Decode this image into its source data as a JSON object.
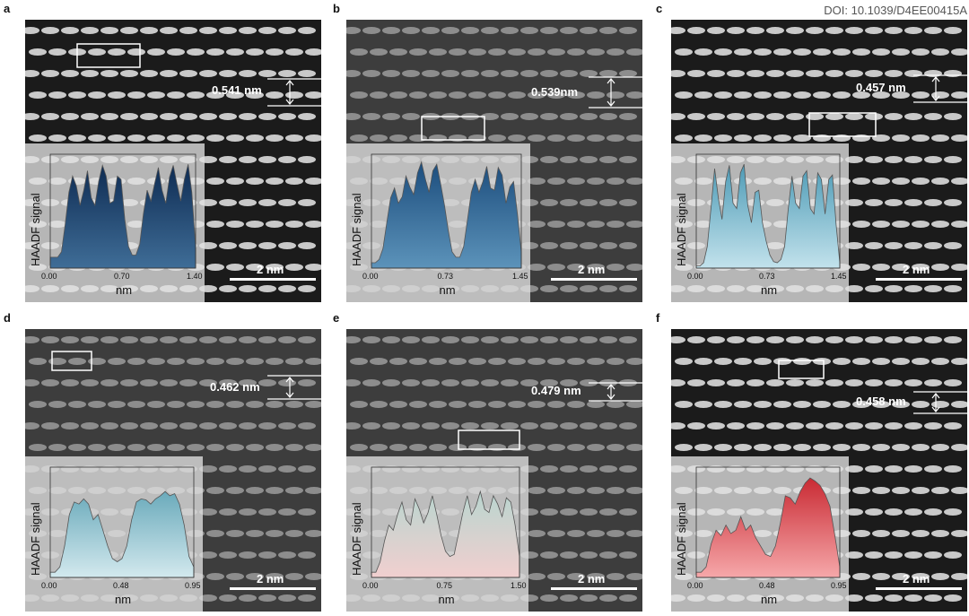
{
  "doi": "DOI: 10.1039/D4EE00415A",
  "panels": [
    {
      "label": "a",
      "spacing": "0.541 nm",
      "scale": "2 nm",
      "inset_ylabel": "HAADF signal",
      "inset_xlabel": "nm",
      "ticks": [
        "0.00",
        "0.70",
        "1.40"
      ],
      "fill_top": "#0e2b52",
      "fill_bottom": "#3f6d97",
      "dark": true
    },
    {
      "label": "b",
      "spacing": "0.539nm",
      "scale": "2 nm",
      "inset_ylabel": "HAADF signal",
      "inset_xlabel": "nm",
      "ticks": [
        "0.00",
        "0.73",
        "1.45"
      ],
      "fill_top": "#1c4d7d",
      "fill_bottom": "#5c93ba",
      "dark": false
    },
    {
      "label": "c",
      "spacing": "0.457 nm",
      "scale": "2 nm",
      "inset_ylabel": "HAADF signal",
      "inset_xlabel": "nm",
      "ticks": [
        "0.00",
        "0.73",
        "1.45"
      ],
      "fill_top": "#4e9bb6",
      "fill_bottom": "#c2e2ec",
      "dark": true
    },
    {
      "label": "d",
      "spacing": "0.462 nm",
      "scale": "2 nm",
      "inset_ylabel": "HAADF signal",
      "inset_xlabel": "nm",
      "ticks": [
        "0.00",
        "0.48",
        "0.95"
      ],
      "fill_top": "#6aaabb",
      "fill_bottom": "#d3e9ee",
      "dark": false
    },
    {
      "label": "e",
      "spacing": "0.479 nm",
      "scale": "2 nm",
      "inset_ylabel": "HAADF signal",
      "inset_xlabel": "nm",
      "ticks": [
        "0.00",
        "0.75",
        "1.50"
      ],
      "fill_top": "#b9d5cf",
      "fill_bottom": "#f1cfcf",
      "dark": false
    },
    {
      "label": "f",
      "spacing": "0.458 nm",
      "scale": "2 nm",
      "inset_ylabel": "HAADF signal",
      "inset_xlabel": "nm",
      "ticks": [
        "0.00",
        "0.48",
        "0.95"
      ],
      "fill_top": "#c92a33",
      "fill_bottom": "#f6a8aa",
      "dark": true
    }
  ],
  "profiles": [
    [
      0.1,
      0.1,
      0.1,
      0.15,
      0.4,
      0.7,
      0.85,
      0.76,
      0.58,
      0.72,
      0.9,
      0.65,
      0.58,
      0.8,
      0.95,
      0.85,
      0.6,
      0.62,
      0.85,
      0.82,
      0.45,
      0.2,
      0.12,
      0.12,
      0.22,
      0.5,
      0.72,
      0.62,
      0.78,
      0.93,
      0.72,
      0.6,
      0.84,
      0.95,
      0.78,
      0.62,
      0.82,
      0.96,
      0.7,
      0.2
    ],
    [
      0.05,
      0.05,
      0.08,
      0.18,
      0.42,
      0.65,
      0.74,
      0.6,
      0.66,
      0.85,
      0.75,
      0.68,
      0.88,
      0.98,
      0.83,
      0.7,
      0.9,
      0.96,
      0.78,
      0.58,
      0.35,
      0.15,
      0.1,
      0.1,
      0.2,
      0.45,
      0.7,
      0.82,
      0.7,
      0.8,
      0.94,
      0.74,
      0.72,
      0.93,
      0.86,
      0.6,
      0.75,
      0.8,
      0.5,
      0.15
    ],
    [
      0.02,
      0.02,
      0.05,
      0.2,
      0.55,
      0.92,
      0.65,
      0.45,
      0.8,
      0.95,
      0.6,
      0.55,
      0.88,
      0.96,
      0.58,
      0.42,
      0.7,
      0.72,
      0.42,
      0.25,
      0.12,
      0.06,
      0.05,
      0.08,
      0.2,
      0.55,
      0.85,
      0.6,
      0.55,
      0.85,
      0.9,
      0.55,
      0.5,
      0.88,
      0.82,
      0.5,
      0.82,
      0.86,
      0.4,
      0.05
    ],
    [
      0.05,
      0.05,
      0.1,
      0.3,
      0.6,
      0.72,
      0.7,
      0.75,
      0.7,
      0.55,
      0.6,
      0.45,
      0.3,
      0.18,
      0.15,
      0.18,
      0.3,
      0.55,
      0.72,
      0.75,
      0.74,
      0.7,
      0.75,
      0.78,
      0.82,
      0.78,
      0.8,
      0.7,
      0.5,
      0.2,
      0.1
    ],
    [
      0.05,
      0.05,
      0.15,
      0.35,
      0.5,
      0.45,
      0.6,
      0.72,
      0.55,
      0.5,
      0.75,
      0.65,
      0.52,
      0.62,
      0.78,
      0.6,
      0.4,
      0.25,
      0.2,
      0.22,
      0.42,
      0.62,
      0.78,
      0.6,
      0.68,
      0.82,
      0.65,
      0.62,
      0.78,
      0.7,
      0.58,
      0.76,
      0.72,
      0.5,
      0.2
    ],
    [
      0.05,
      0.05,
      0.1,
      0.32,
      0.45,
      0.4,
      0.5,
      0.42,
      0.45,
      0.58,
      0.45,
      0.5,
      0.38,
      0.3,
      0.22,
      0.2,
      0.3,
      0.52,
      0.78,
      0.76,
      0.7,
      0.82,
      0.9,
      0.95,
      0.92,
      0.88,
      0.8,
      0.68,
      0.4,
      0.1
    ]
  ]
}
